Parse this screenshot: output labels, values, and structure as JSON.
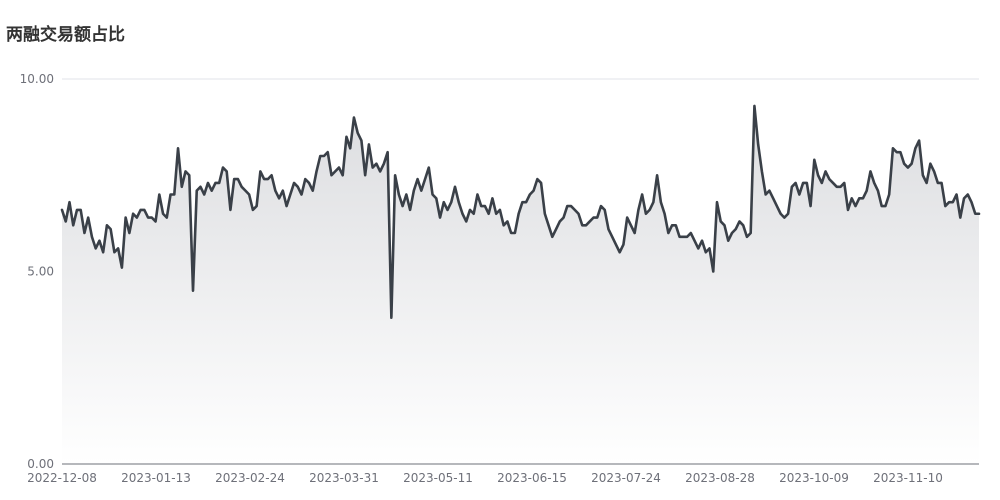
{
  "chart_data": {
    "type": "area",
    "title": "两融交易额占比",
    "xlabel": "",
    "ylabel": "",
    "ylim": [
      0,
      10
    ],
    "y_ticks": [
      "0.00",
      "5.00",
      "10.00"
    ],
    "x_ticks": [
      "2022-12-08",
      "2023-01-13",
      "2023-02-24",
      "2023-03-31",
      "2023-05-11",
      "2023-06-15",
      "2023-07-24",
      "2023-08-28",
      "2023-10-09",
      "2023-11-10"
    ],
    "grid": true,
    "legend": "none",
    "colors": {
      "line": "#3a4048",
      "fill_top": "#dcdde0",
      "fill_bottom": "#ffffff",
      "grid": "#e0e3ea",
      "axis": "#6e7079",
      "title": "#333333"
    },
    "series": [
      {
        "values": [
          6.6,
          6.3,
          6.8,
          6.2,
          6.6,
          6.6,
          6.0,
          6.4,
          5.9,
          5.6,
          5.8,
          5.5,
          6.2,
          6.1,
          5.5,
          5.6,
          5.1,
          6.4,
          6.0,
          6.5,
          6.4,
          6.6,
          6.6,
          6.4,
          6.4,
          6.3,
          7.0,
          6.5,
          6.4,
          7.0,
          7.0,
          8.2,
          7.2,
          7.6,
          7.5,
          4.5,
          7.1,
          7.2,
          7.0,
          7.3,
          7.1,
          7.3,
          7.3,
          7.7,
          7.6,
          6.6,
          7.4,
          7.4,
          7.2,
          7.1,
          7.0,
          6.6,
          6.7,
          7.6,
          7.4,
          7.4,
          7.5,
          7.1,
          6.9,
          7.1,
          6.7,
          7.0,
          7.3,
          7.2,
          7.0,
          7.4,
          7.3,
          7.1,
          7.6,
          8.0,
          8.0,
          8.1,
          7.5,
          7.6,
          7.7,
          7.5,
          8.5,
          8.2,
          9.0,
          8.6,
          8.4,
          7.5,
          8.3,
          7.7,
          7.8,
          7.6,
          7.8,
          8.1,
          3.8,
          7.5,
          7.0,
          6.7,
          7.0,
          6.6,
          7.1,
          7.4,
          7.1,
          7.4,
          7.7,
          7.0,
          6.9,
          6.4,
          6.8,
          6.6,
          6.8,
          7.2,
          6.8,
          6.5,
          6.3,
          6.6,
          6.5,
          7.0,
          6.7,
          6.7,
          6.5,
          6.9,
          6.5,
          6.6,
          6.2,
          6.3,
          6.0,
          6.0,
          6.5,
          6.8,
          6.8,
          7.0,
          7.1,
          7.4,
          7.3,
          6.5,
          6.2,
          5.9,
          6.1,
          6.3,
          6.4,
          6.7,
          6.7,
          6.6,
          6.5,
          6.2,
          6.2,
          6.3,
          6.4,
          6.4,
          6.7,
          6.6,
          6.1,
          5.9,
          5.7,
          5.5,
          5.7,
          6.4,
          6.2,
          6.0,
          6.6,
          7.0,
          6.5,
          6.6,
          6.8,
          7.5,
          6.8,
          6.5,
          6.0,
          6.2,
          6.2,
          5.9,
          5.9,
          5.9,
          6.0,
          5.8,
          5.6,
          5.8,
          5.5,
          5.6,
          5.0,
          6.8,
          6.3,
          6.2,
          5.8,
          6.0,
          6.1,
          6.3,
          6.2,
          5.9,
          6.0,
          9.3,
          8.3,
          7.6,
          7.0,
          7.1,
          6.9,
          6.7,
          6.5,
          6.4,
          6.5,
          7.2,
          7.3,
          7.0,
          7.3,
          7.3,
          6.7,
          7.9,
          7.5,
          7.3,
          7.6,
          7.4,
          7.3,
          7.2,
          7.2,
          7.3,
          6.6,
          6.9,
          6.7,
          6.9,
          6.9,
          7.1,
          7.6,
          7.3,
          7.1,
          6.7,
          6.7,
          7.0,
          8.2,
          8.1,
          8.1,
          7.8,
          7.7,
          7.8,
          8.2,
          8.4,
          7.5,
          7.3,
          7.8,
          7.6,
          7.3,
          7.3,
          6.7,
          6.8,
          6.8,
          7.0,
          6.4,
          6.9,
          7.0,
          6.8,
          6.5,
          6.5
        ]
      }
    ]
  }
}
